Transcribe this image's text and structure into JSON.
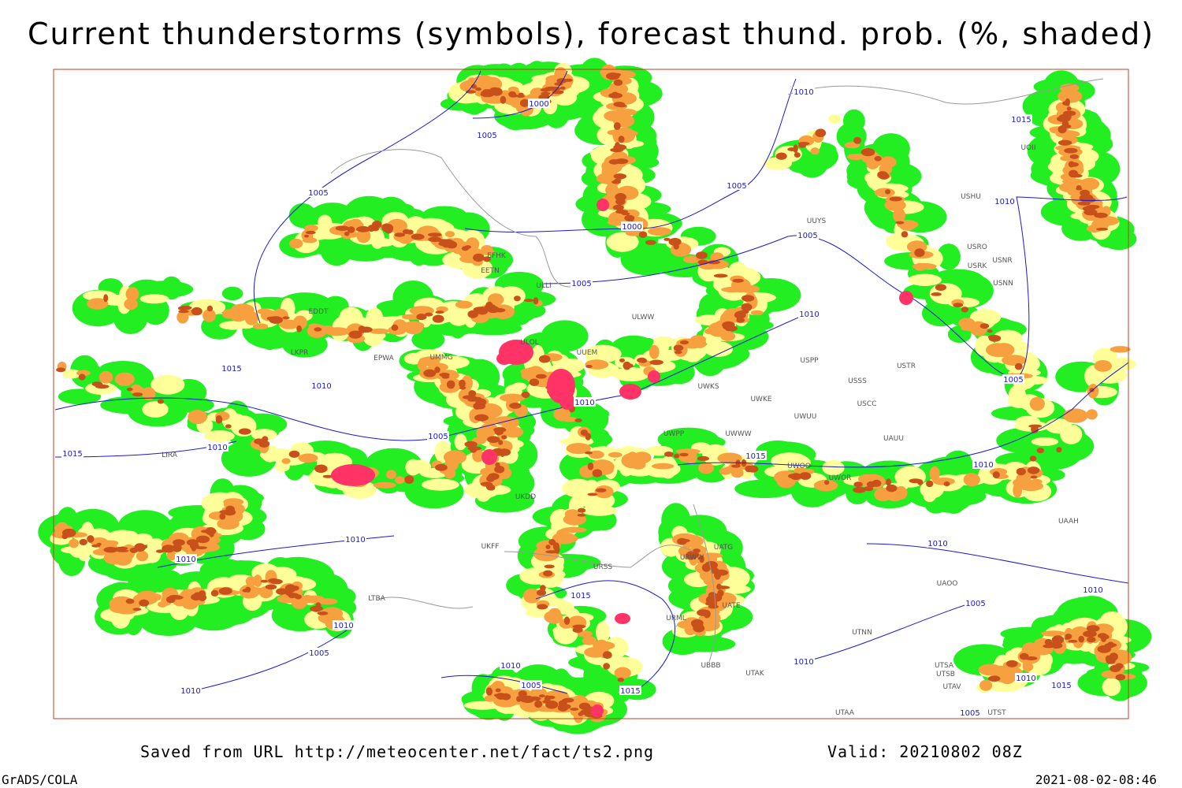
{
  "title": "Current thunderstorms (symbols), forecast thund. prob. (%, shaded)",
  "footer": {
    "source": "Saved from URL http://meteocenter.net/fact/ts2.png",
    "valid": "Valid: 20210802 08Z",
    "software": "GrADS/COLA",
    "timestamp": "2021-08-02-08:46"
  },
  "map": {
    "isobar_labels": [
      "1000",
      "1005",
      "1005",
      "1000",
      "1005",
      "1005",
      "1010",
      "1015",
      "1010",
      "1005",
      "1010",
      "1015",
      "1010",
      "1010",
      "1005",
      "1015",
      "1010",
      "1015",
      "1010",
      "1005",
      "1010",
      "1010",
      "1015",
      "1010",
      "1005",
      "1010",
      "1010",
      "1005",
      "1010",
      "1010",
      "1005",
      "1015",
      "1010",
      "1010",
      "1015",
      "1005"
    ],
    "stations": [
      "UUYS",
      "USRO",
      "USRK",
      "USNR",
      "USNN",
      "UOII",
      "USHU",
      "ULWW",
      "UUEM",
      "ULOL",
      "UMMG",
      "EPWA",
      "UWKS",
      "UWKE",
      "UWWW",
      "UWPP",
      "UWUU",
      "USSS",
      "USCC",
      "USPP",
      "USTR",
      "UKDD",
      "URWW",
      "UATG",
      "UATE",
      "URML",
      "UBBB",
      "UTAK",
      "UTNN",
      "UTSA",
      "UTSB",
      "UTAV",
      "UTAA",
      "UTST",
      "UAOO",
      "UAAH",
      "UWOO",
      "UWOR",
      "UAUU",
      "ULLI",
      "EFHK",
      "EETN",
      "EDDT",
      "LKPR",
      "LIRA",
      "LTBA",
      "UKFF",
      "URSS"
    ]
  }
}
